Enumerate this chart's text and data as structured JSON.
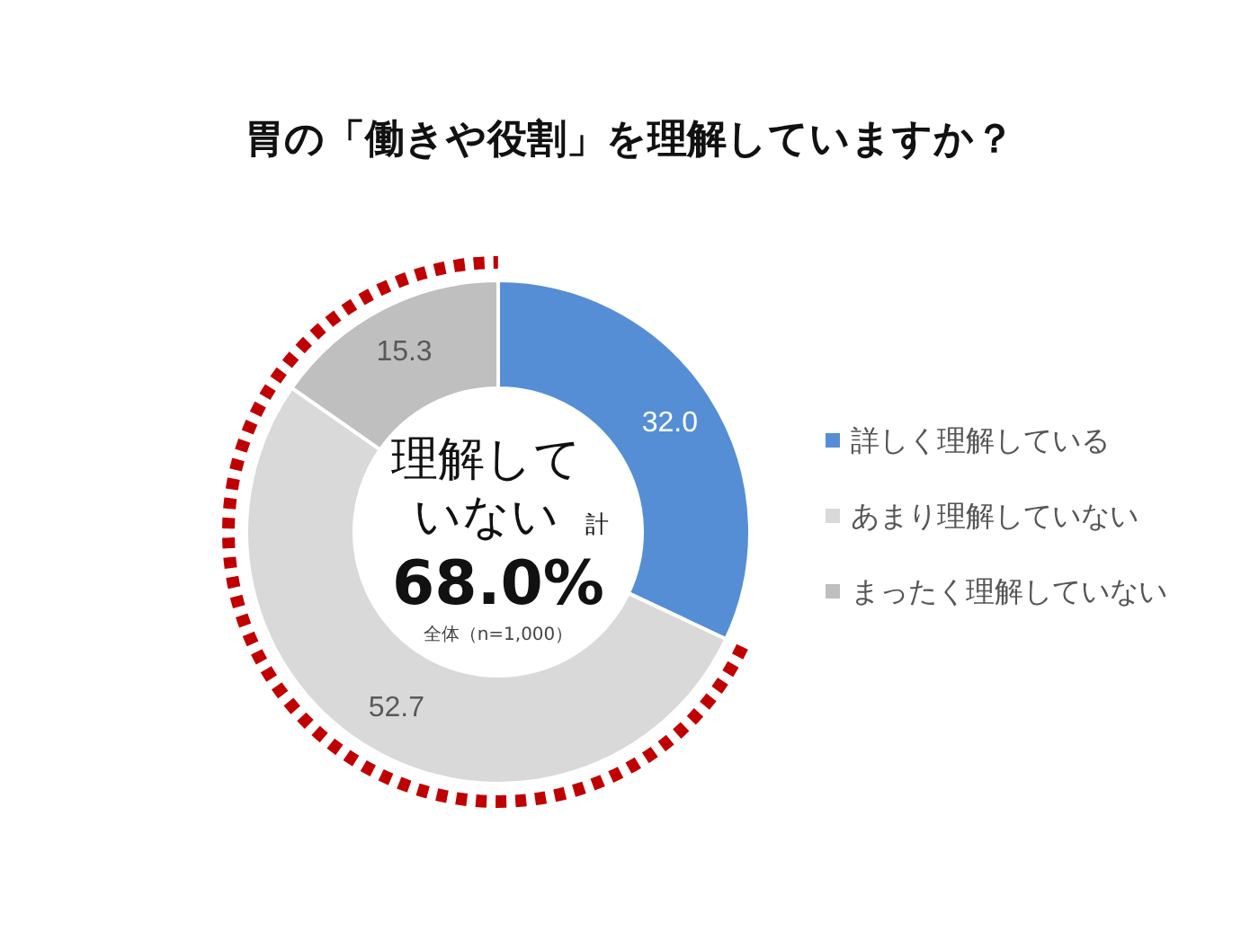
{
  "chart_data": {
    "type": "donut",
    "title": "胃の「働きや役割」を理解していますか？",
    "categories": [
      "詳しく理解している",
      "あまり理解していない",
      "まったく理解していない"
    ],
    "values": [
      32.0,
      52.7,
      15.3
    ],
    "colors": [
      "#558ed5",
      "#d9d9d9",
      "#bfbfbf"
    ],
    "value_labels": [
      "32.0",
      "52.7",
      "15.3"
    ],
    "legend": "right",
    "annotations": [
      "理解していない",
      "計",
      "68.0%",
      "全体（n=1,000）"
    ]
  }
}
